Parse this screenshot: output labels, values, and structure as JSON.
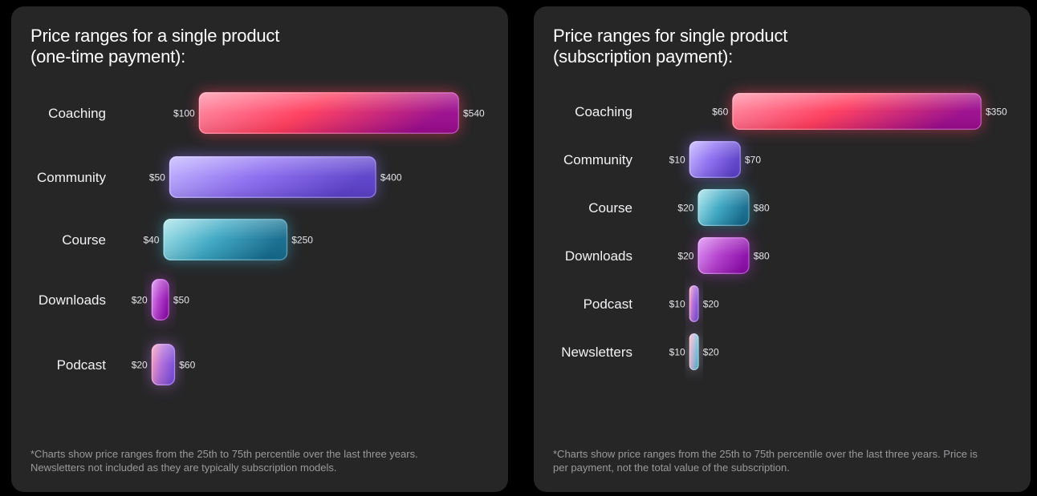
{
  "left_panel": {
    "title_line1": "Price ranges for a single product",
    "title_line2": "(one-time payment):",
    "footnote_line1": "*Charts show price ranges from the 25th to 75th percentile over the last three years.",
    "footnote_line2": "Newsletters not included as they are typically subscription models."
  },
  "right_panel": {
    "title_line1": "Price ranges for single product",
    "title_line2": "(subscription payment):",
    "footnote_line1": "*Charts show price ranges from the 25th to 75th percentile over the last three years. Price is",
    "footnote_line2": "per payment, not the total value of the subscription."
  },
  "colors": {
    "coaching": [
      "#ff8fa6",
      "#ff3a5c",
      "#9a0a8c"
    ],
    "community": [
      "#c2b4ff",
      "#8a6cf0",
      "#5a3fc8"
    ],
    "course": [
      "#a6e4ea",
      "#3aa6c2",
      "#136a8c"
    ],
    "downloads": [
      "#d98cf2",
      "#b23acb",
      "#8a0aa8"
    ],
    "podcast": [
      "#ff9fb8",
      "#b06ad8",
      "#7a4ad8"
    ],
    "newsletters": [
      "#ffb0c0",
      "#b8b6d8",
      "#5ab8d0"
    ]
  },
  "chart_data": [
    {
      "type": "bar",
      "orientation": "horizontal-range",
      "title": "Price ranges for a single product (one-time payment):",
      "unit": "$",
      "categories": [
        "Coaching",
        "Community",
        "Course",
        "Downloads",
        "Podcast"
      ],
      "series": [
        {
          "low": [
            100,
            50,
            40,
            20,
            20
          ],
          "high": [
            540,
            400,
            250,
            50,
            60
          ],
          "low_labels": [
            "$100",
            "$50",
            "$40",
            "$20",
            "$20"
          ],
          "high_labels": [
            "$540",
            "$400",
            "$250",
            "$50",
            "$60"
          ]
        }
      ],
      "color_keys": [
        "coaching",
        "community",
        "course",
        "downloads",
        "podcast"
      ],
      "xlim": [
        0,
        540
      ],
      "grid": false
    },
    {
      "type": "bar",
      "orientation": "horizontal-range",
      "title": "Price ranges for single product (subscription payment):",
      "unit": "$",
      "categories": [
        "Coaching",
        "Community",
        "Course",
        "Downloads",
        "Podcast",
        "Newsletters"
      ],
      "series": [
        {
          "low": [
            60,
            10,
            20,
            20,
            10,
            10
          ],
          "high": [
            350,
            70,
            80,
            80,
            20,
            20
          ],
          "low_labels": [
            "$60",
            "$10",
            "$20",
            "$20",
            "$10",
            "$10"
          ],
          "high_labels": [
            "$350",
            "$70",
            "$80",
            "$80",
            "$20",
            "$20"
          ]
        }
      ],
      "color_keys": [
        "coaching",
        "community",
        "course",
        "downloads",
        "podcast",
        "newsletters"
      ],
      "xlim": [
        0,
        350
      ],
      "grid": false
    }
  ]
}
